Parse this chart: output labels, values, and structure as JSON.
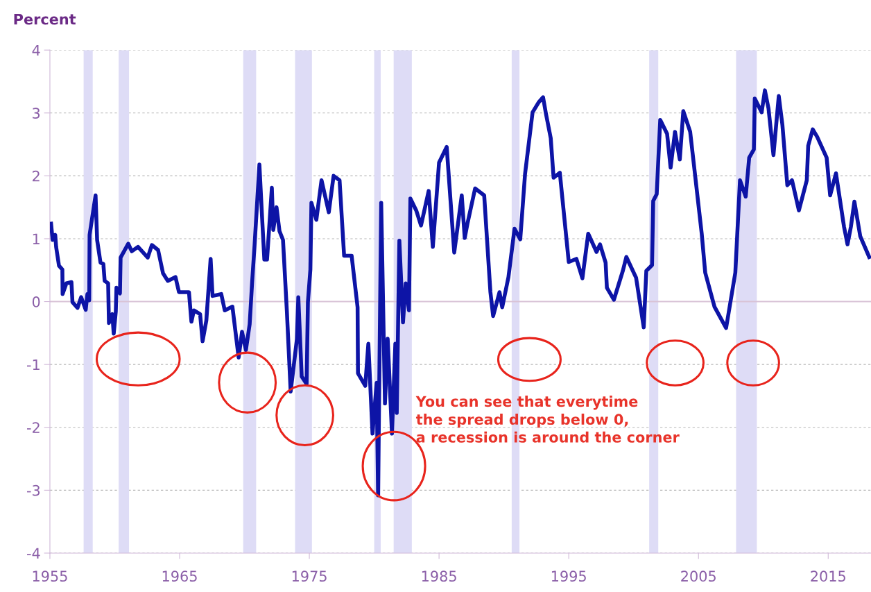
{
  "chart_data": {
    "type": "line",
    "ylabel": "Percent",
    "xlim": [
      1955,
      2018.3
    ],
    "xticks": [
      1955,
      1965,
      1975,
      1985,
      1995,
      2005,
      2015
    ],
    "ylim": [
      -4,
      4
    ],
    "yticks": [
      -4,
      -3,
      -2,
      -1,
      0,
      1,
      2,
      3,
      4
    ],
    "grid": "y",
    "line_style": "solid",
    "marker": "none",
    "ref_lines": [
      {
        "axis": "y",
        "value": 0,
        "label": null,
        "color": "#d9c3d6",
        "line_style": "solid"
      }
    ],
    "bands": [
      {
        "axis": "x",
        "from": 1957.6,
        "to": 1958.3,
        "label": null,
        "color": "#dedcf6"
      },
      {
        "axis": "x",
        "from": 1960.3,
        "to": 1961.1,
        "label": null,
        "color": "#dedcf6"
      },
      {
        "axis": "x",
        "from": 1969.9,
        "to": 1970.9,
        "label": null,
        "color": "#dedcf6"
      },
      {
        "axis": "x",
        "from": 1973.9,
        "to": 1975.2,
        "label": null,
        "color": "#dedcf6"
      },
      {
        "axis": "x",
        "from": 1980.0,
        "to": 1980.5,
        "label": null,
        "color": "#dedcf6"
      },
      {
        "axis": "x",
        "from": 1981.5,
        "to": 1982.9,
        "label": null,
        "color": "#dedcf6"
      },
      {
        "axis": "x",
        "from": 1990.6,
        "to": 1991.2,
        "label": null,
        "color": "#dedcf6"
      },
      {
        "axis": "x",
        "from": 2001.2,
        "to": 2001.9,
        "label": null,
        "color": "#dedcf6"
      },
      {
        "axis": "x",
        "from": 2007.9,
        "to": 2009.5,
        "label": null,
        "color": "#dedcf6"
      }
    ],
    "annotations": [
      "You can see that everytime\nthe spread drops below 0,\na recession is around the corner"
    ],
    "series": [
      {
        "color": "#0d14a6",
        "x": [
          1955.09,
          1955.21,
          1955.41,
          1955.48,
          1955.7,
          1955.96,
          1955.98,
          1956.27,
          1956.66,
          1956.74,
          1957.13,
          1957.41,
          1957.76,
          1957.89,
          1958.03,
          1958.06,
          1958.52,
          1958.64,
          1958.9,
          1959.12,
          1959.22,
          1959.49,
          1959.55,
          1959.81,
          1959.92,
          1960.08,
          1960.13,
          1960.4,
          1960.45,
          1961.04,
          1961.31,
          1961.79,
          1962.19,
          1962.54,
          1962.86,
          1963.34,
          1963.72,
          1964.09,
          1964.68,
          1964.95,
          1965.72,
          1965.91,
          1966.1,
          1966.58,
          1966.77,
          1967.06,
          1967.39,
          1967.54,
          1968.21,
          1968.48,
          1969.07,
          1969.55,
          1969.81,
          1970.11,
          1970.4,
          1970.59,
          1970.78,
          1971.15,
          1971.36,
          1971.53,
          1971.74,
          1972.11,
          1972.22,
          1972.47,
          1972.7,
          1972.97,
          1973.27,
          1973.56,
          1974.04,
          1974.15,
          1974.41,
          1974.79,
          1974.89,
          1975.08,
          1975.16,
          1975.54,
          1975.94,
          1976.5,
          1976.87,
          1977.33,
          1977.68,
          1978.26,
          1978.72,
          1978.75,
          1979.31,
          1979.55,
          1979.87,
          1980.19,
          1980.3,
          1980.54,
          1980.83,
          1981.04,
          1981.37,
          1981.63,
          1981.74,
          1981.94,
          1982.22,
          1982.43,
          1982.68,
          1982.79,
          1983.24,
          1983.61,
          1984.2,
          1984.52,
          1985.0,
          1985.59,
          1986.17,
          1986.75,
          1986.98,
          1987.2,
          1987.78,
          1988.48,
          1988.96,
          1989.17,
          1989.66,
          1989.87,
          1990.35,
          1990.82,
          1991.26,
          1991.63,
          1992.21,
          1992.68,
          1993.02,
          1993.24,
          1993.61,
          1993.83,
          1994.31,
          1995.0,
          1995.59,
          1996.05,
          1996.5,
          1997.14,
          1997.41,
          1997.84,
          1997.94,
          1998.48,
          1999.17,
          1999.44,
          2000.19,
          2000.78,
          2000.98,
          2001.42,
          2001.51,
          2001.78,
          2002.05,
          2002.58,
          2002.85,
          2003.19,
          2003.56,
          2003.83,
          2004.36,
          2005.25,
          2005.52,
          2006.23,
          2007.13,
          2007.84,
          2008.2,
          2008.64,
          2008.91,
          2009.27,
          2009.34,
          2009.87,
          2010.12,
          2010.4,
          2010.78,
          2011.19,
          2011.47,
          2011.85,
          2012.21,
          2012.74,
          2013.35,
          2013.46,
          2013.81,
          2014.15,
          2014.88,
          2015.15,
          2015.6,
          2016.22,
          2016.49,
          2016.75,
          2017.02,
          2017.47,
          2018.16
        ],
        "values": [
          1.24,
          0.98,
          1.06,
          0.87,
          0.57,
          0.51,
          0.12,
          0.29,
          0.31,
          -0.01,
          -0.1,
          0.07,
          -0.13,
          0.12,
          0.02,
          1.06,
          1.69,
          0.98,
          0.62,
          0.6,
          0.33,
          0.29,
          -0.34,
          -0.2,
          -0.51,
          -0.16,
          0.22,
          0.13,
          0.7,
          0.92,
          0.8,
          0.87,
          0.78,
          0.7,
          0.9,
          0.82,
          0.45,
          0.33,
          0.39,
          0.15,
          0.15,
          -0.32,
          -0.14,
          -0.2,
          -0.63,
          -0.3,
          0.68,
          0.09,
          0.12,
          -0.14,
          -0.08,
          -0.89,
          -0.48,
          -0.77,
          -0.36,
          0.31,
          0.9,
          2.18,
          1.33,
          0.67,
          0.67,
          1.81,
          1.14,
          1.5,
          1.12,
          0.98,
          -0.16,
          -1.43,
          -0.6,
          0.07,
          -1.19,
          -1.31,
          -0.01,
          0.51,
          1.57,
          1.3,
          1.93,
          1.42,
          2.0,
          1.93,
          0.73,
          0.73,
          -0.09,
          -1.14,
          -1.34,
          -0.67,
          -2.1,
          -1.29,
          -3.08,
          1.57,
          -1.62,
          -0.59,
          -2.1,
          -0.67,
          -1.77,
          0.97,
          -0.33,
          0.29,
          -0.14,
          1.64,
          1.45,
          1.21,
          1.76,
          0.87,
          2.21,
          2.46,
          0.78,
          1.69,
          1.01,
          1.25,
          1.8,
          1.69,
          0.15,
          -0.23,
          0.15,
          -0.09,
          0.39,
          1.16,
          0.99,
          2.03,
          3.01,
          3.17,
          3.25,
          2.99,
          2.6,
          1.97,
          2.05,
          0.63,
          0.68,
          0.37,
          1.08,
          0.79,
          0.91,
          0.62,
          0.22,
          0.03,
          0.49,
          0.71,
          0.38,
          -0.41,
          0.49,
          0.58,
          1.6,
          1.71,
          2.89,
          2.67,
          2.13,
          2.7,
          2.26,
          3.03,
          2.7,
          1.08,
          0.46,
          -0.08,
          -0.42,
          0.46,
          1.93,
          1.67,
          2.29,
          2.42,
          3.23,
          3.01,
          3.36,
          3.07,
          2.33,
          3.27,
          2.81,
          1.85,
          1.93,
          1.45,
          1.93,
          2.48,
          2.74,
          2.62,
          2.29,
          1.69,
          2.04,
          1.19,
          0.91,
          1.19,
          1.59,
          1.04,
          0.71
        ]
      }
    ]
  }
}
